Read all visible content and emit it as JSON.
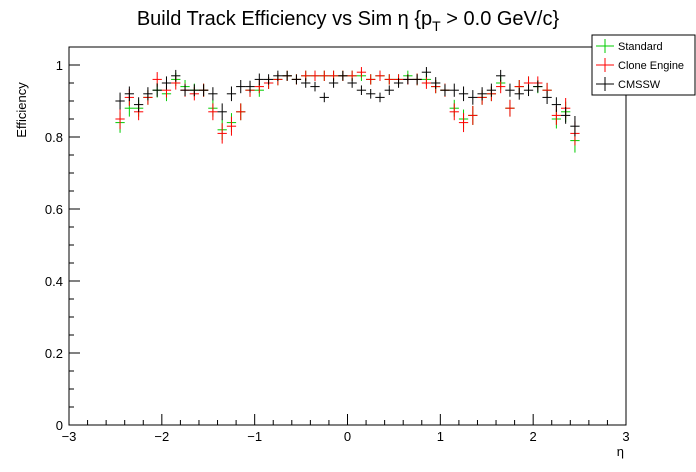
{
  "chart_data": {
    "type": "scatter",
    "title": "Build Track Efficiency vs Sim η {p",
    "title_sub": "T",
    "title_tail": " > 0.0 GeV/c}",
    "xlabel": "η",
    "ylabel": "Efficiency",
    "xlim": [
      -3,
      3
    ],
    "ylim": [
      0,
      1.05
    ],
    "xticks": [
      -3,
      -2,
      -1,
      0,
      1,
      2,
      3
    ],
    "xtick_labels": [
      "−3",
      "−2",
      "−1",
      "0",
      "1",
      "2",
      "3"
    ],
    "yticks": [
      0,
      0.2,
      0.4,
      0.6,
      0.8,
      1
    ],
    "ytick_labels": [
      "0",
      "0.2",
      "0.4",
      "0.6",
      "0.8",
      "1"
    ],
    "x_bin_half_width": 0.05,
    "grid": false,
    "legend_position": "top-right",
    "x": [
      -2.45,
      -2.35,
      -2.25,
      -2.15,
      -2.05,
      -1.95,
      -1.85,
      -1.75,
      -1.65,
      -1.55,
      -1.45,
      -1.35,
      -1.25,
      -1.15,
      -1.05,
      -0.95,
      -0.85,
      -0.75,
      -0.65,
      -0.55,
      -0.45,
      -0.35,
      -0.25,
      -0.15,
      -0.05,
      0.05,
      0.15,
      0.25,
      0.35,
      0.45,
      0.55,
      0.65,
      0.75,
      0.85,
      0.95,
      1.05,
      1.15,
      1.25,
      1.35,
      1.45,
      1.55,
      1.65,
      1.75,
      1.85,
      1.95,
      2.05,
      2.15,
      2.25,
      2.35,
      2.45
    ],
    "series": [
      {
        "name": "Standard",
        "color": "#00cc00",
        "values": [
          0.84,
          0.88,
          0.88,
          0.91,
          0.93,
          0.92,
          0.96,
          0.94,
          0.93,
          0.93,
          0.88,
          0.82,
          0.84,
          0.87,
          0.93,
          0.93,
          0.95,
          0.96,
          0.97,
          0.96,
          0.97,
          0.97,
          0.97,
          0.97,
          0.97,
          0.97,
          0.97,
          0.96,
          0.97,
          0.96,
          0.96,
          0.97,
          0.96,
          0.96,
          0.94,
          0.93,
          0.88,
          0.85,
          0.86,
          0.91,
          0.92,
          0.95,
          0.88,
          0.94,
          0.95,
          0.94,
          0.93,
          0.85,
          0.87,
          0.79
        ],
        "errors": [
          0.02,
          0.015,
          0.015,
          0.012,
          0.012,
          0.012,
          0.01,
          0.01,
          0.01,
          0.01,
          0.015,
          0.02,
          0.018,
          0.015,
          0.01,
          0.01,
          0.008,
          0.008,
          0.006,
          0.006,
          0.006,
          0.006,
          0.006,
          0.006,
          0.006,
          0.006,
          0.006,
          0.006,
          0.006,
          0.006,
          0.006,
          0.006,
          0.008,
          0.008,
          0.01,
          0.01,
          0.015,
          0.018,
          0.018,
          0.012,
          0.012,
          0.01,
          0.015,
          0.01,
          0.01,
          0.01,
          0.012,
          0.018,
          0.02,
          0.025
        ]
      },
      {
        "name": "Clone Engine",
        "color": "#ff0000",
        "values": [
          0.85,
          0.91,
          0.87,
          0.91,
          0.96,
          0.93,
          0.95,
          0.93,
          0.92,
          0.93,
          0.87,
          0.81,
          0.83,
          0.87,
          0.93,
          0.94,
          0.95,
          0.96,
          0.97,
          0.96,
          0.97,
          0.97,
          0.97,
          0.97,
          0.97,
          0.97,
          0.98,
          0.96,
          0.97,
          0.96,
          0.96,
          0.96,
          0.96,
          0.95,
          0.94,
          0.93,
          0.87,
          0.84,
          0.86,
          0.91,
          0.92,
          0.94,
          0.88,
          0.94,
          0.95,
          0.95,
          0.93,
          0.86,
          0.88,
          0.81
        ],
        "errors": [
          0.02,
          0.015,
          0.015,
          0.012,
          0.012,
          0.012,
          0.01,
          0.01,
          0.01,
          0.01,
          0.015,
          0.02,
          0.018,
          0.015,
          0.01,
          0.01,
          0.008,
          0.008,
          0.006,
          0.006,
          0.006,
          0.006,
          0.006,
          0.006,
          0.006,
          0.006,
          0.006,
          0.006,
          0.006,
          0.006,
          0.006,
          0.006,
          0.008,
          0.008,
          0.01,
          0.01,
          0.015,
          0.018,
          0.018,
          0.012,
          0.012,
          0.01,
          0.015,
          0.01,
          0.01,
          0.01,
          0.012,
          0.018,
          0.02,
          0.025
        ]
      },
      {
        "name": "CMSSW",
        "color": "#000000",
        "values": [
          0.9,
          0.92,
          0.89,
          0.92,
          0.93,
          0.95,
          0.97,
          0.93,
          0.93,
          0.93,
          0.92,
          0.87,
          0.92,
          0.94,
          0.94,
          0.96,
          0.96,
          0.97,
          0.97,
          0.96,
          0.95,
          0.94,
          0.91,
          0.95,
          0.97,
          0.95,
          0.93,
          0.92,
          0.91,
          0.93,
          0.95,
          0.96,
          0.96,
          0.98,
          0.95,
          0.93,
          0.93,
          0.92,
          0.91,
          0.92,
          0.93,
          0.97,
          0.93,
          0.92,
          0.93,
          0.94,
          0.91,
          0.89,
          0.86,
          0.83
        ],
        "errors": [
          0.015,
          0.012,
          0.012,
          0.01,
          0.01,
          0.01,
          0.008,
          0.008,
          0.008,
          0.008,
          0.01,
          0.015,
          0.012,
          0.01,
          0.008,
          0.008,
          0.006,
          0.006,
          0.005,
          0.005,
          0.005,
          0.005,
          0.005,
          0.005,
          0.005,
          0.005,
          0.005,
          0.005,
          0.005,
          0.005,
          0.005,
          0.005,
          0.006,
          0.006,
          0.008,
          0.008,
          0.01,
          0.012,
          0.012,
          0.01,
          0.01,
          0.008,
          0.01,
          0.008,
          0.008,
          0.008,
          0.01,
          0.012,
          0.015,
          0.02
        ]
      }
    ]
  }
}
